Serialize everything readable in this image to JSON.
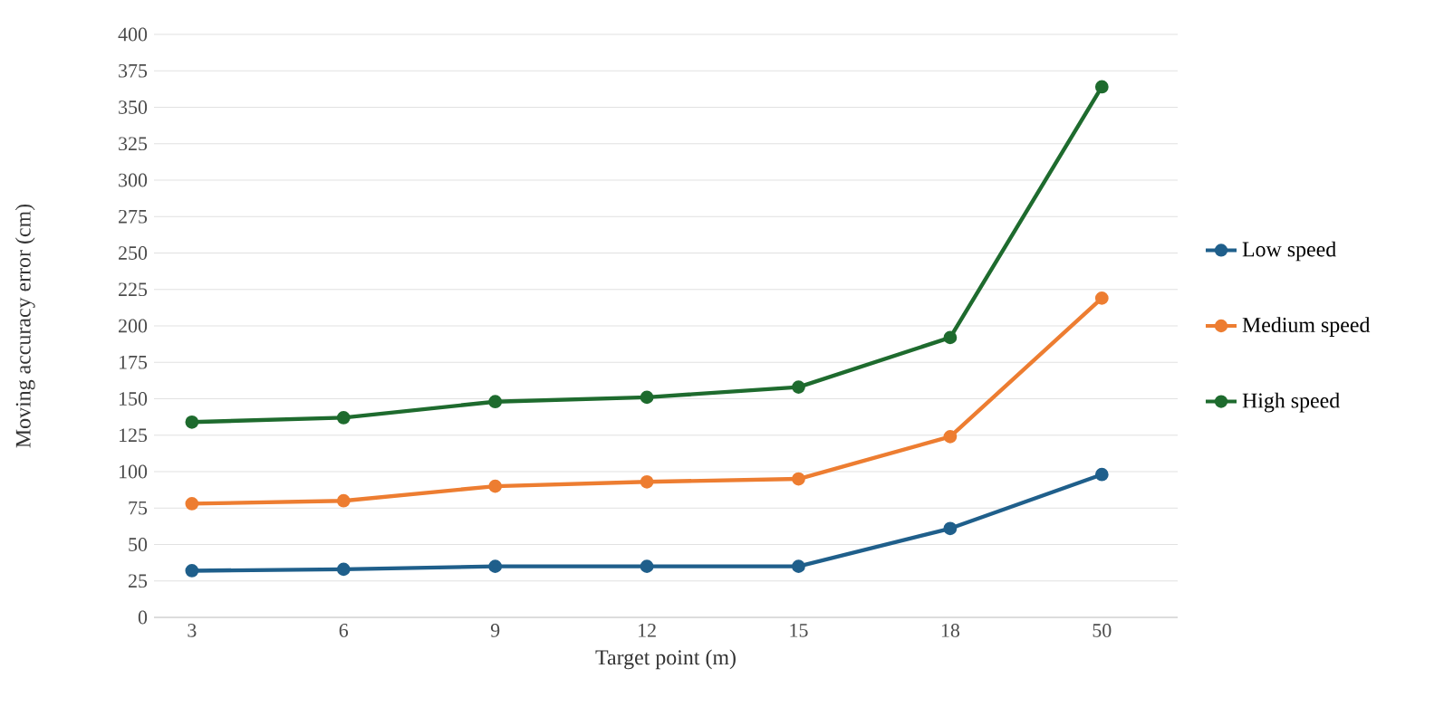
{
  "chart_data": {
    "type": "line",
    "xlabel": "Target point (m)",
    "ylabel": "Moving accuracy error (cm)",
    "categories": [
      "3",
      "6",
      "9",
      "12",
      "15",
      "18",
      "50"
    ],
    "series": [
      {
        "name": "Low speed",
        "color": "#1f5f8b",
        "values": [
          32,
          33,
          35,
          35,
          35,
          61,
          98
        ]
      },
      {
        "name": "Medium speed",
        "color": "#ed7d31",
        "values": [
          78,
          80,
          90,
          93,
          95,
          124,
          219
        ]
      },
      {
        "name": "High speed",
        "color": "#1e6b2e",
        "values": [
          134,
          137,
          148,
          151,
          158,
          192,
          364
        ]
      }
    ],
    "ylim": [
      0,
      400
    ],
    "yticks": [
      0,
      25,
      50,
      75,
      100,
      125,
      150,
      175,
      200,
      225,
      250,
      275,
      300,
      325,
      350,
      375,
      400
    ],
    "grid": "y",
    "legend": "right",
    "marker": "circle",
    "line_style": "solid"
  }
}
